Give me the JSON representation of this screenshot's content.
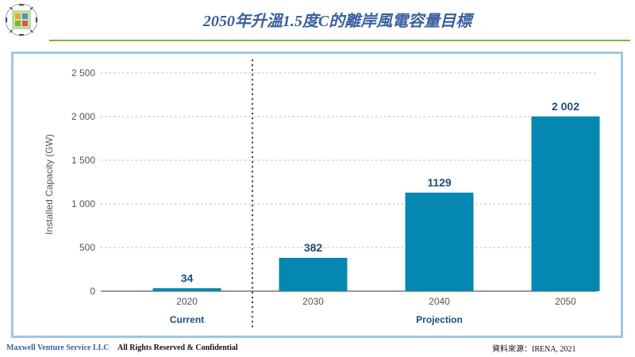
{
  "header": {
    "title": "2050年升溫1.5度C的離岸風電容量目標",
    "logo_label": "Maxwell Venture Service"
  },
  "footer": {
    "company": "Maxwell Venture Service LLC",
    "rights": "All Rights Reserved & Confidential",
    "source": "資料來源：IRENA, 2021"
  },
  "colors": {
    "accent_green": "#7fb241",
    "title_blue": "#3b5fa0",
    "bar": "#0487b0",
    "frame": "#9ec8e6",
    "label_navy": "#1d4f7a"
  },
  "chart_data": {
    "type": "bar",
    "title": "",
    "xlabel": "",
    "ylabel": "Installed Capacity (GW)",
    "categories": [
      "2020",
      "2030",
      "2040",
      "2050"
    ],
    "values": [
      34,
      382,
      1129,
      2002
    ],
    "value_labels": [
      "34",
      "382",
      "1129",
      "2 002"
    ],
    "y_ticks": [
      0,
      500,
      1000,
      1500,
      2000,
      2500
    ],
    "y_tick_labels": [
      "0",
      "500",
      "1 000",
      "1 500",
      "2 000",
      "2 500"
    ],
    "ylim": [
      0,
      2500
    ],
    "grid": true,
    "groups": [
      {
        "label": "Current",
        "categories": [
          "2020"
        ]
      },
      {
        "label": "Projection",
        "categories": [
          "2030",
          "2040",
          "2050"
        ]
      }
    ]
  }
}
